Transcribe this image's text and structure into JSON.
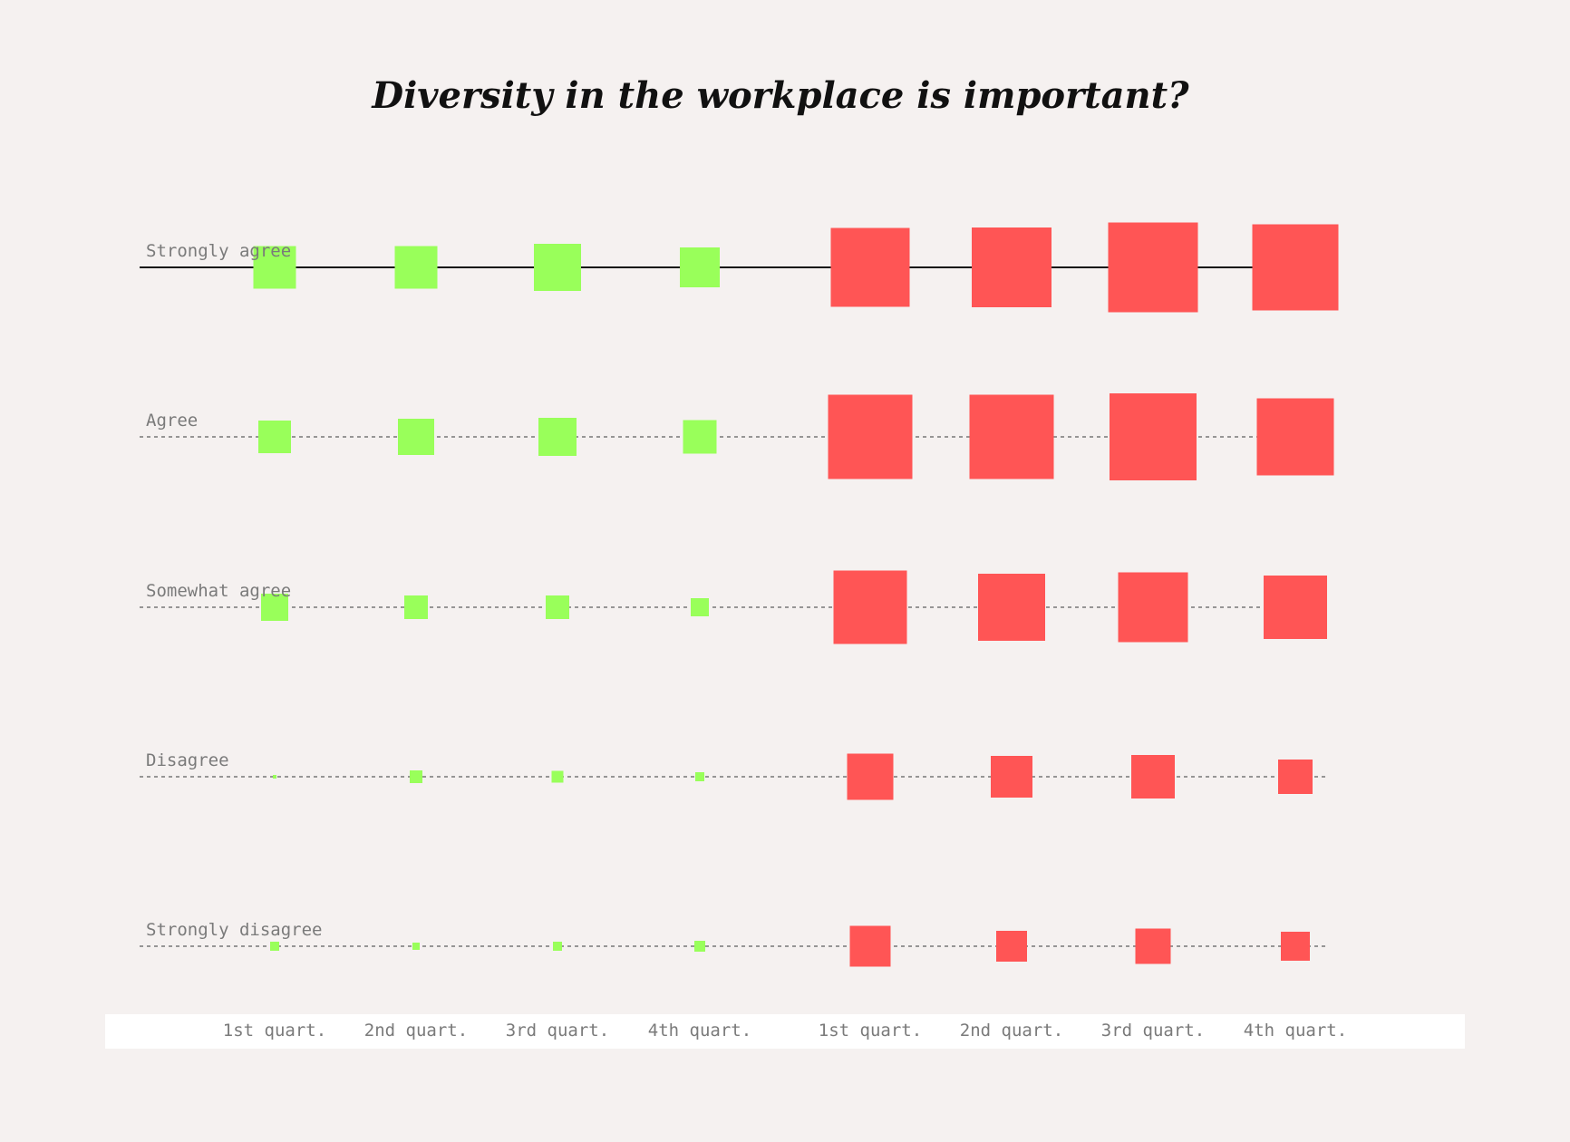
{
  "chart_data": {
    "type": "scatter",
    "title": "Diversity in the workplace is important?",
    "rows": [
      "Strongly agree",
      "Agree",
      "Somewhat agree",
      "Disagree",
      "Strongly disagree"
    ],
    "categories": [
      "1st quart.",
      "2nd quart.",
      "3rd quart.",
      "4th quart.",
      "1st quart.",
      "2nd quart.",
      "3rd quart.",
      "4th quart."
    ],
    "marker": "square",
    "size_encodes": "value",
    "series": [
      {
        "color": "#99ff5a",
        "category_indices": [
          0,
          1,
          2,
          3
        ],
        "values": [
          [
            47,
            47,
            52,
            44
          ],
          [
            36,
            40,
            42,
            37
          ],
          [
            30,
            26,
            26,
            20
          ],
          [
            4,
            14,
            13,
            10
          ],
          [
            10,
            8,
            10,
            12
          ]
        ]
      },
      {
        "color": "#ff5555",
        "category_indices": [
          4,
          5,
          6,
          7
        ],
        "values": [
          [
            87,
            88,
            99,
            95
          ],
          [
            93,
            93,
            96,
            85
          ],
          [
            81,
            74,
            77,
            70
          ],
          [
            51,
            46,
            48,
            38
          ],
          [
            45,
            34,
            39,
            32
          ]
        ]
      }
    ],
    "grid": "dotted horizontal line per row",
    "highlighted_row": "Strongly agree",
    "legend": "none"
  }
}
